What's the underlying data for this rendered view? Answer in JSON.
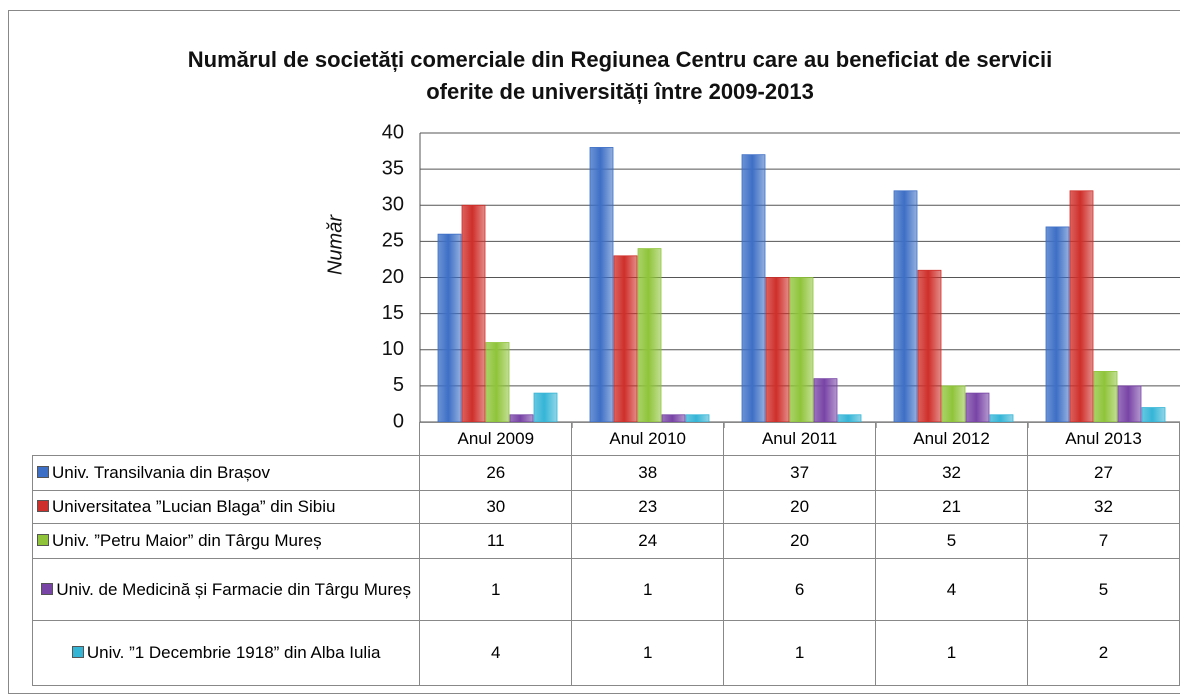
{
  "chart_data": {
    "type": "bar",
    "title": "Numărul de societăți comerciale din Regiunea Centru  care au beneficiat de servicii oferite de universități între 2009-2013",
    "y_label": "Număr",
    "categories": [
      "Anul 2009",
      "Anul 2010",
      "Anul 2011",
      "Anul 2012",
      "Anul 2013"
    ],
    "series": [
      {
        "name": "Univ. Transilvania din Brașov",
        "color": "#3d6fc6",
        "values": [
          26,
          38,
          37,
          32,
          27
        ]
      },
      {
        "name": "Universitatea ”Lucian Blaga” din Sibiu",
        "color": "#cf2f2a",
        "values": [
          30,
          23,
          20,
          21,
          32
        ]
      },
      {
        "name": "Univ. ”Petru Maior” din Târgu Mureș",
        "color": "#8fc43a",
        "values": [
          11,
          24,
          20,
          5,
          7
        ]
      },
      {
        "name": "Univ.  de Medicină și Farmacie din Târgu Mureș",
        "color": "#7844a6",
        "values": [
          1,
          1,
          6,
          4,
          5
        ]
      },
      {
        "name": "Univ. ”1 Decembrie 1918” din Alba Iulia",
        "color": "#35b5d6",
        "values": [
          4,
          1,
          1,
          1,
          2
        ]
      }
    ],
    "ylim": [
      0,
      40
    ],
    "yticks": [
      0,
      5,
      10,
      15,
      20,
      25,
      30,
      35,
      40
    ],
    "grid": true
  }
}
